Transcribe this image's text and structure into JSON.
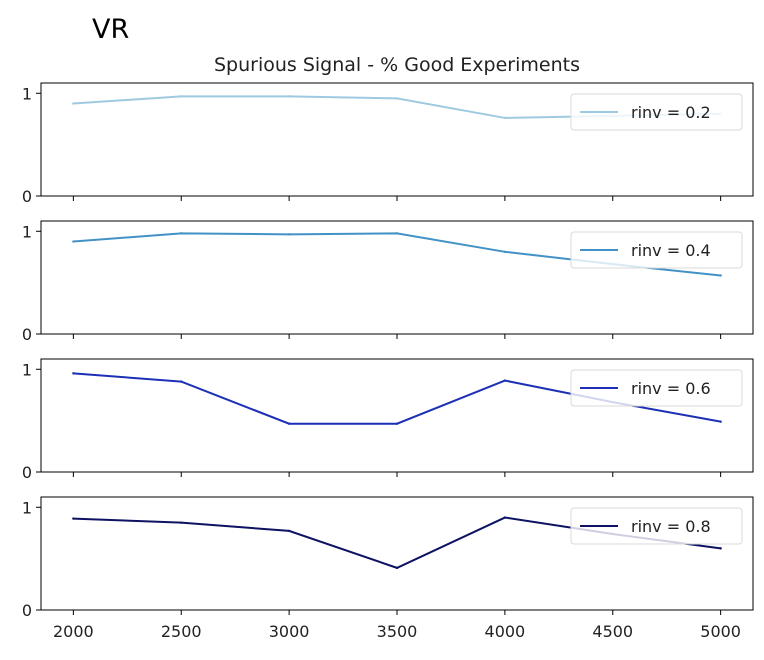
{
  "figure": {
    "label": "VR"
  },
  "chart_data": {
    "type": "line",
    "title": "Spurious Signal - % Good Experiments",
    "xlabel": "",
    "ylabel": "",
    "x": [
      2000,
      2500,
      3000,
      3500,
      4000,
      4500,
      5000
    ],
    "x_ticks": [
      "2000",
      "2500",
      "3000",
      "3500",
      "4000",
      "4500",
      "5000"
    ],
    "xlim": [
      1850,
      5150
    ],
    "ylim": [
      0,
      1.1
    ],
    "y_ticks": [
      "0",
      "1"
    ],
    "grid": false,
    "legend_position": "upper right",
    "subplots": [
      {
        "series": [
          {
            "name": "rinv = 0.2",
            "color": "#9ecae1",
            "values": [
              0.9,
              0.97,
              0.97,
              0.95,
              0.76,
              0.78,
              0.8
            ]
          }
        ]
      },
      {
        "series": [
          {
            "name": "rinv = 0.4",
            "color": "#4292c6",
            "values": [
              0.9,
              0.98,
              0.97,
              0.98,
              0.8,
              0.68,
              0.57
            ]
          }
        ]
      },
      {
        "series": [
          {
            "name": "rinv = 0.6",
            "color": "#1c2fb5",
            "values": [
              0.96,
              0.88,
              0.47,
              0.47,
              0.89,
              0.68,
              0.49
            ]
          }
        ]
      },
      {
        "series": [
          {
            "name": "rinv = 0.8",
            "color": "#0d1263",
            "values": [
              0.89,
              0.85,
              0.77,
              0.41,
              0.9,
              0.74,
              0.6
            ]
          }
        ]
      }
    ]
  }
}
